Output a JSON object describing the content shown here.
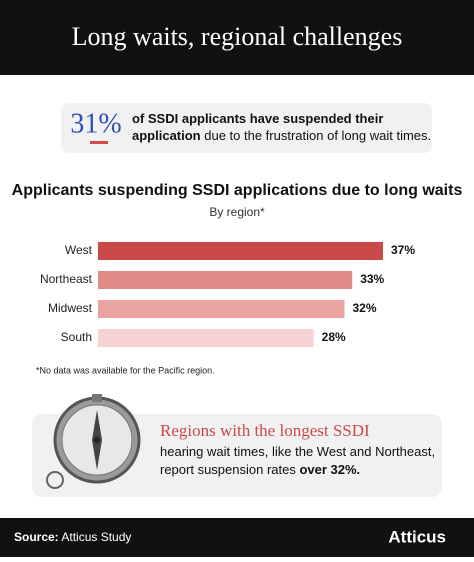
{
  "header": {
    "title": "Long waits, regional challenges"
  },
  "stat": {
    "value": "31%",
    "lines": [
      [
        {
          "text": "of SSDI applicants have suspended their",
          "bold": true
        }
      ],
      [
        {
          "text": "application",
          "bold": true
        },
        {
          "text": " due to the frustration of long wait times.",
          "bold": false
        }
      ]
    ]
  },
  "chart_data": {
    "type": "bar",
    "orientation": "horizontal",
    "title": "Applicants suspending SSDI applications due to long waits",
    "subtitle": "By region*",
    "categories": [
      "West",
      "Northeast",
      "Midwest",
      "South"
    ],
    "values": [
      37,
      33,
      32,
      28
    ],
    "value_labels": [
      "37%",
      "33%",
      "32%",
      "28%"
    ],
    "colors": [
      "#c94a49",
      "#e18b88",
      "#e9a3a1",
      "#f5d3d3"
    ],
    "footnote": "*No data was available for the Pacific region."
  },
  "callout": {
    "title": "Regions with the longest SSDI",
    "lines": [
      [
        {
          "text": "hearing wait times, like the West and Northeast,",
          "bold": false
        }
      ],
      [
        {
          "text": "report suspension rates ",
          "bold": false
        },
        {
          "text": "over 32%.",
          "bold": true
        }
      ]
    ]
  },
  "footer": {
    "source_label": "Source:",
    "source": " Atticus Study",
    "brand": "Atticus"
  }
}
